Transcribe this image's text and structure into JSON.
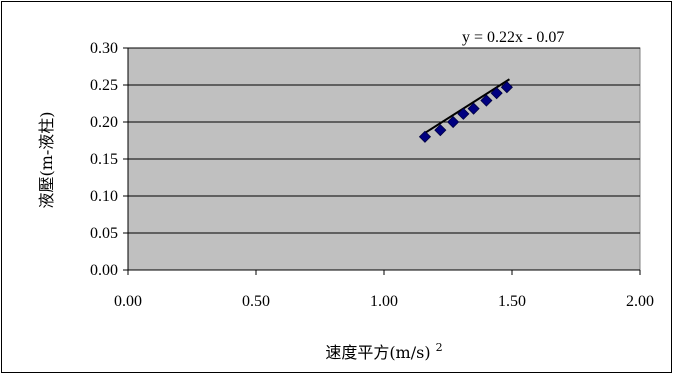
{
  "chart_data": {
    "type": "scatter",
    "title": "",
    "xlabel": "速度平方(m/s)",
    "xlabel_superscript": "2",
    "ylabel": "液壓(m-液柱)",
    "xlim": [
      0.0,
      2.0
    ],
    "ylim": [
      0.0,
      0.3
    ],
    "x_ticks": [
      "0.00",
      "0.50",
      "1.00",
      "1.50",
      "2.00"
    ],
    "y_ticks": [
      "0.00",
      "0.05",
      "0.10",
      "0.15",
      "0.20",
      "0.25",
      "0.30"
    ],
    "grid": "horizontal",
    "plot_background": "#c0c0c0",
    "marker_color": "#000080",
    "trendline_color": "#000000",
    "trendline": {
      "slope": 0.22,
      "intercept": -0.07,
      "x_range": [
        1.16,
        1.49
      ]
    },
    "equation_label": "y = 0.22x - 0.07",
    "x": [
      1.16,
      1.22,
      1.27,
      1.31,
      1.35,
      1.4,
      1.44,
      1.48
    ],
    "y": [
      0.18,
      0.189,
      0.2,
      0.211,
      0.218,
      0.229,
      0.239,
      0.247
    ]
  }
}
